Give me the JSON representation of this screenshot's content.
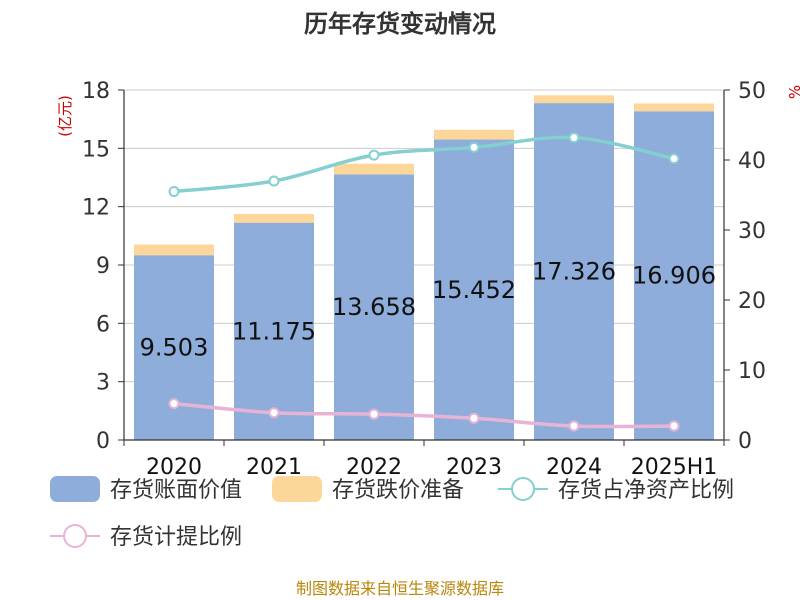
{
  "chart_data": {
    "type": "bar",
    "title": "历年存货变动情况",
    "categories": [
      "2020",
      "2021",
      "2022",
      "2023",
      "2024",
      "2025H1"
    ],
    "y_left": {
      "unit_label": "(亿元)",
      "range": [
        0,
        18
      ],
      "ticks": [
        "0",
        "3",
        "6",
        "9",
        "12",
        "15",
        "18"
      ]
    },
    "y_right": {
      "unit_label": "%",
      "range": [
        0,
        50
      ],
      "ticks": [
        "0",
        "10",
        "20",
        "30",
        "40",
        "50"
      ]
    },
    "grid": true,
    "legend_position": "bottom",
    "series": [
      {
        "name": "存货账面价值",
        "kind": "bar",
        "axis": "left",
        "color": "#8eadda",
        "values": [
          9.503,
          11.175,
          13.658,
          15.452,
          17.326,
          16.906
        ],
        "labels": [
          "9.503",
          "11.175",
          "13.658",
          "15.452",
          "17.326",
          "16.906"
        ]
      },
      {
        "name": "存货跌价准备",
        "kind": "bar",
        "axis": "left",
        "color": "#fdd79a",
        "values": [
          0.55,
          0.45,
          0.55,
          0.5,
          0.4,
          0.4
        ]
      },
      {
        "name": "存货占净资产比例",
        "kind": "line",
        "axis": "right",
        "color": "#84cfd0",
        "values": [
          35.5,
          37.0,
          40.7,
          41.8,
          43.2,
          40.2
        ]
      },
      {
        "name": "存货计提比例",
        "kind": "line",
        "axis": "right",
        "color": "#e8b4d6",
        "values": [
          5.2,
          3.9,
          3.7,
          3.1,
          2.0,
          2.0
        ]
      }
    ]
  },
  "footer": "制图数据来自恒生聚源数据库"
}
